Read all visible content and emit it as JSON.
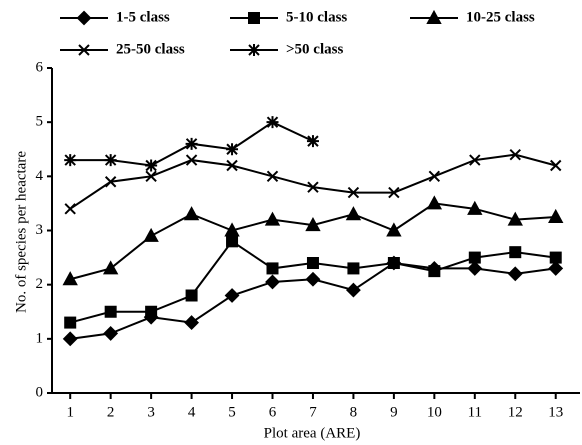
{
  "chart_data": {
    "type": "line",
    "x": [
      1,
      2,
      3,
      4,
      5,
      6,
      7,
      8,
      9,
      10,
      11,
      12,
      13
    ],
    "xlim": [
      0.55,
      13.6
    ],
    "xticks": [
      1,
      2,
      3,
      4,
      5,
      6,
      7,
      8,
      9,
      10,
      11,
      12,
      13
    ],
    "ylim": [
      0,
      6
    ],
    "yticks": [
      0,
      1,
      2,
      3,
      4,
      5,
      6
    ],
    "xlabel": "Plot area (ARE)",
    "ylabel": "No. of species per heactare",
    "grid": false,
    "legend": "top",
    "series": [
      {
        "name": "1-5 class",
        "color": "#000000",
        "marker": "diamond",
        "values": [
          1.0,
          1.1,
          1.4,
          1.3,
          1.8,
          2.05,
          2.1,
          1.9,
          2.4,
          2.3,
          2.3,
          2.2,
          2.3
        ]
      },
      {
        "name": "5-10 class",
        "color": "#000000",
        "marker": "square",
        "values": [
          1.3,
          1.5,
          1.5,
          1.8,
          2.8,
          2.3,
          2.4,
          2.3,
          2.4,
          2.25,
          2.5,
          2.6,
          2.5
        ]
      },
      {
        "name": "10-25 class",
        "color": "#000000",
        "marker": "triangle",
        "values": [
          2.1,
          2.3,
          2.9,
          3.3,
          3.0,
          3.2,
          3.1,
          3.3,
          3.0,
          3.5,
          3.4,
          3.2,
          3.25
        ]
      },
      {
        "name": "25-50 class",
        "color": "#000000",
        "marker": "x",
        "values": [
          3.4,
          3.9,
          4.0,
          4.3,
          4.2,
          4.0,
          3.8,
          3.7,
          3.7,
          4.0,
          4.3,
          4.4,
          4.2
        ]
      },
      {
        "name": ">50 class",
        "color": "#000000",
        "marker": "star",
        "values": [
          4.3,
          4.3,
          4.2,
          4.6,
          4.5,
          5.0,
          4.65,
          null,
          null,
          null,
          null,
          null,
          null
        ]
      }
    ]
  }
}
